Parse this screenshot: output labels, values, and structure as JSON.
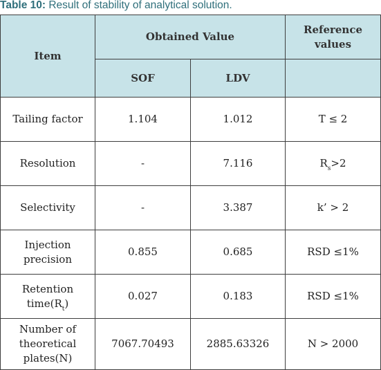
{
  "caption": {
    "label": "Table 10:",
    "text": " Result of stability of analytical solution."
  },
  "table": {
    "header": {
      "item": "Item",
      "obtained": "Obtained Value",
      "reference": "Reference values",
      "sof": "SOF",
      "ldv": "LDV"
    },
    "rows": [
      {
        "item": "Tailing factor",
        "sof": "1.104",
        "ldv": "1.012",
        "ref": "T ≤ 2"
      },
      {
        "item": "Resolution",
        "sof": "-",
        "ldv": "7.116",
        "ref_main": "R",
        "ref_sub": "s",
        "ref_tail": ">2"
      },
      {
        "item": "Selectivity",
        "sof": "-",
        "ldv": "3.387",
        "ref": "k’ > 2"
      },
      {
        "item": "Injection precision",
        "sof": "0.855",
        "ldv": "0.685",
        "ref": "RSD ≤1%"
      },
      {
        "item_main": "Retention time(R",
        "item_sub": "t",
        "item_tail": ")",
        "sof": "0.027",
        "ldv": "0.183",
        "ref": "RSD ≤1%"
      },
      {
        "item": "Number of theoretical plates(N)",
        "sof": "7067.70493",
        "ldv": "2885.63326",
        "ref": "N > 2000"
      }
    ]
  }
}
